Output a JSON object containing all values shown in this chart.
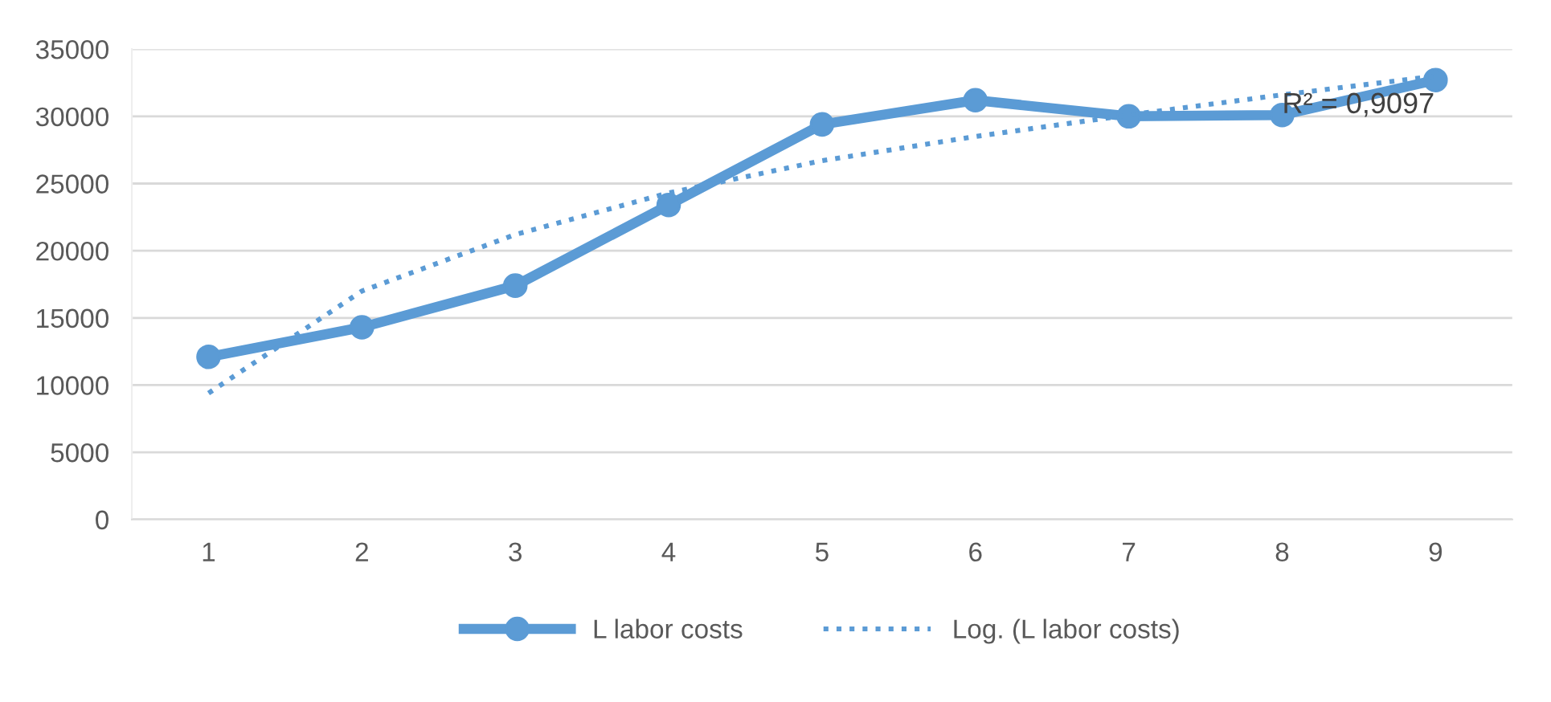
{
  "chart_data": {
    "type": "line",
    "x": [
      1,
      2,
      3,
      4,
      5,
      6,
      7,
      8,
      9
    ],
    "xlim": [
      0.5,
      9.5
    ],
    "xticks": [
      1,
      2,
      3,
      4,
      5,
      6,
      7,
      8,
      9
    ],
    "ylim": [
      0,
      35000
    ],
    "yticks": [
      0,
      5000,
      10000,
      15000,
      20000,
      25000,
      30000,
      35000
    ],
    "grid": "y",
    "legend": "bottom",
    "series": [
      {
        "name": "L labor costs",
        "color": "#5b9bd5",
        "marker": "circle",
        "line_style": "solid",
        "values": [
          12100,
          14300,
          17400,
          23400,
          29400,
          31200,
          30000,
          30100,
          32700
        ]
      },
      {
        "name": "Log. (L labor costs)",
        "color": "#5b9bd5",
        "marker": "none",
        "line_style": "dotted",
        "values": [
          9400,
          17000,
          21200,
          24300,
          26700,
          28500,
          30100,
          31600,
          33000
        ]
      }
    ],
    "annotations": [
      {
        "text": "R² = 0,9097",
        "x": 8,
        "y": 30800
      }
    ]
  }
}
